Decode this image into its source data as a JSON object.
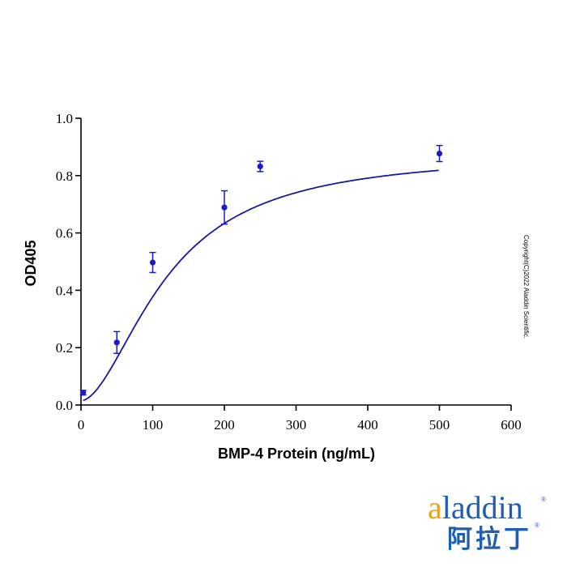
{
  "chart_data": {
    "type": "line",
    "title": "",
    "xlabel": "BMP-4 Protein (ng/mL)",
    "ylabel": "OD405",
    "xlim": [
      0,
      600
    ],
    "ylim": [
      0,
      1.0
    ],
    "x_ticks": [
      0,
      100,
      200,
      300,
      400,
      500,
      600
    ],
    "y_ticks": [
      0.0,
      0.2,
      0.4,
      0.6,
      0.8,
      1.0
    ],
    "x_tick_labels": [
      "0",
      "100",
      "200",
      "300",
      "400",
      "500",
      "600"
    ],
    "y_tick_labels": [
      "0.0",
      "0.2",
      "0.4",
      "0.6",
      "0.8",
      "1.0"
    ],
    "series": [
      {
        "name": "BMP-4 Protein",
        "color": "#1a1acc",
        "x": [
          3,
          50,
          100,
          200,
          250,
          500
        ],
        "y": [
          0.043,
          0.218,
          0.497,
          0.689,
          0.832,
          0.877
        ],
        "error": [
          0.008,
          0.038,
          0.035,
          0.058,
          0.018,
          0.028
        ]
      }
    ],
    "fit": {
      "type": "sigmoid",
      "bottom": 0.015,
      "top": 0.88,
      "ec50": 120,
      "hill": 1.8,
      "color": "#1a1a99"
    },
    "grid": false,
    "legend": "none"
  },
  "copyright": "Copyright(C)2022 Aladdin Scientific.",
  "logo": {
    "latin_first": "a",
    "latin_rest": "laddin",
    "cjk": "阿拉丁",
    "registered": "®"
  }
}
